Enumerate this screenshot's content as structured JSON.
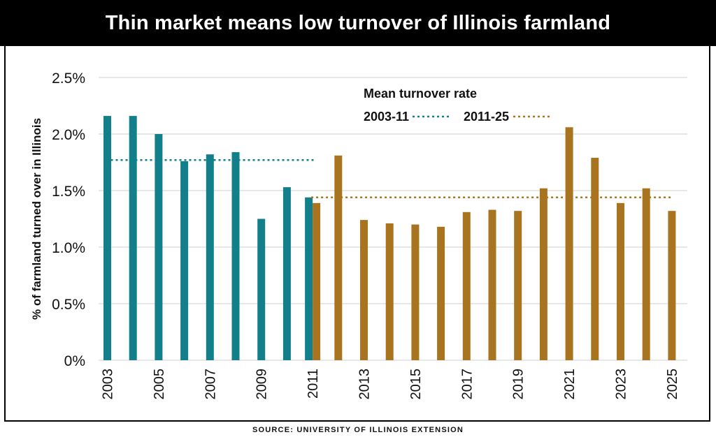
{
  "source": "SOURCE: UNIVERSITY OF ILLINOIS EXTENSION",
  "colors": {
    "teal": "#127f8b",
    "gold": "#a87420",
    "grid": "#cfcfcf",
    "text": "#111111"
  },
  "chart_data": {
    "type": "bar",
    "title": "Thin market means low turnover of Illinois farmland",
    "xlabel": "",
    "ylabel": "% of farmland turned over in Illinois",
    "ylim": [
      0,
      2.5
    ],
    "yticks": [
      0,
      0.5,
      1.0,
      1.5,
      2.0,
      2.5
    ],
    "ytick_labels": [
      "0%",
      "0.5%",
      "1.0%",
      "1.5%",
      "2.0%",
      "2.5%"
    ],
    "xtick_labels": [
      "2003",
      "2005",
      "2007",
      "2009",
      "2011",
      "2013",
      "2015",
      "2017",
      "2019",
      "2021",
      "2023",
      "2025"
    ],
    "grid": true,
    "series": [
      {
        "name": "2003-11",
        "color": "#127f8b",
        "x": [
          2003,
          2004,
          2005,
          2006,
          2007,
          2008,
          2009,
          2010,
          2011
        ],
        "values": [
          2.16,
          2.16,
          2.0,
          1.76,
          1.82,
          1.84,
          1.25,
          1.53,
          1.44
        ]
      },
      {
        "name": "2011-25",
        "color": "#a87420",
        "x": [
          2011,
          2012,
          2013,
          2014,
          2015,
          2016,
          2017,
          2018,
          2019,
          2020,
          2021,
          2022,
          2023,
          2024,
          2025
        ],
        "values": [
          1.39,
          1.81,
          1.24,
          1.21,
          1.2,
          1.18,
          1.31,
          1.33,
          1.32,
          1.52,
          2.06,
          1.79,
          1.39,
          1.52,
          1.32
        ]
      }
    ],
    "mean_lines": [
      {
        "name": "2003-11",
        "value": 1.77,
        "x_start": 2003,
        "x_end": 2011,
        "color": "#127f8b"
      },
      {
        "name": "2011-25",
        "value": 1.44,
        "x_start": 2011,
        "x_end": 2025,
        "color": "#a87420"
      }
    ],
    "legend": {
      "title": "Mean turnover rate",
      "placement": "top-center",
      "entries": [
        {
          "label": "2003-11",
          "color": "#127f8b"
        },
        {
          "label": "2011-25",
          "color": "#a87420"
        }
      ]
    }
  }
}
